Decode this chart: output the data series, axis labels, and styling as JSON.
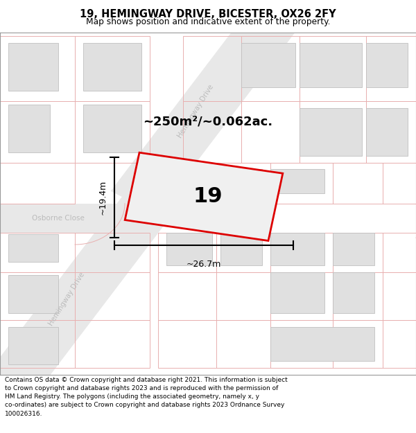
{
  "title_line1": "19, HEMINGWAY DRIVE, BICESTER, OX26 2FY",
  "title_line2": "Map shows position and indicative extent of the property.",
  "footer_text": "Contains OS data © Crown copyright and database right 2021. This information is subject\nto Crown copyright and database rights 2023 and is reproduced with the permission of\nHM Land Registry. The polygons (including the associated geometry, namely x, y\nco-ordinates) are subject to Crown copyright and database rights 2023 Ordnance Survey\n100026316.",
  "area_label": "~250m²/~0.062ac.",
  "number_label": "19",
  "dim_width": "~26.7m",
  "dim_height": "~19.4m",
  "map_bg": "#ffffff",
  "road_fill": "#e8e8e8",
  "pink": "#e8b0b0",
  "bld_fill": "#e0e0e0",
  "bld_edge": "#c0c0c0",
  "subject_edge": "#dd0000",
  "subject_fill": "#f0f0f0",
  "street_color": "#bbbbbb",
  "dim_color": "#222222",
  "title_fontsize": 10.5,
  "subtitle_fontsize": 8.8,
  "footer_fontsize": 6.5,
  "area_fontsize": 13,
  "num_fontsize": 22,
  "dim_fontsize": 9
}
